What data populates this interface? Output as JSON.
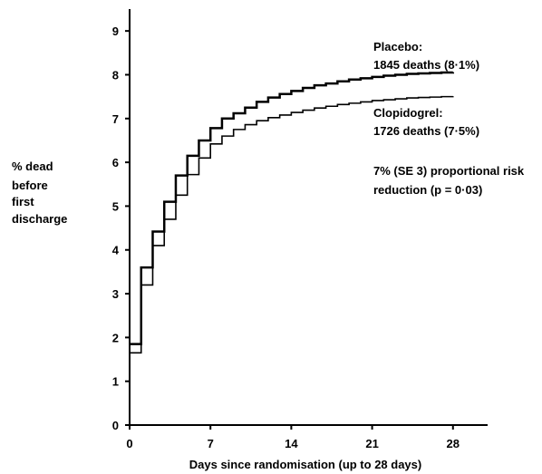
{
  "chart_data": {
    "type": "line",
    "title": "",
    "xlabel": "Days since randomisation (up to 28 days)",
    "ylabel_lines": [
      "% dead",
      "before",
      "first",
      "discharge"
    ],
    "xlim": [
      0,
      31
    ],
    "ylim": [
      0,
      9.5
    ],
    "x_ticks": [
      0,
      7,
      14,
      21,
      28
    ],
    "y_ticks": [
      0,
      1,
      2,
      3,
      4,
      5,
      6,
      7,
      8,
      9
    ],
    "grid": false,
    "step": true,
    "series": [
      {
        "name": "Placebo",
        "stroke_width": 2.5,
        "x": [
          0,
          1,
          2,
          3,
          4,
          5,
          6,
          7,
          8,
          9,
          10,
          11,
          12,
          13,
          14,
          15,
          16,
          17,
          18,
          19,
          20,
          21,
          22,
          23,
          24,
          25,
          26,
          27,
          28
        ],
        "values": [
          1.85,
          3.6,
          4.42,
          5.1,
          5.7,
          6.15,
          6.5,
          6.78,
          7.0,
          7.12,
          7.25,
          7.38,
          7.48,
          7.56,
          7.63,
          7.7,
          7.76,
          7.8,
          7.85,
          7.89,
          7.92,
          7.95,
          7.98,
          8.0,
          8.02,
          8.03,
          8.04,
          8.05,
          8.06
        ]
      },
      {
        "name": "Clopidogrel",
        "stroke_width": 1.6,
        "x": [
          0,
          1,
          2,
          3,
          4,
          5,
          6,
          7,
          8,
          9,
          10,
          11,
          12,
          13,
          14,
          15,
          16,
          17,
          18,
          19,
          20,
          21,
          22,
          23,
          24,
          25,
          26,
          27,
          28
        ],
        "values": [
          1.65,
          3.2,
          4.1,
          4.7,
          5.25,
          5.72,
          6.1,
          6.42,
          6.6,
          6.75,
          6.86,
          6.95,
          7.02,
          7.08,
          7.14,
          7.19,
          7.24,
          7.28,
          7.32,
          7.35,
          7.38,
          7.41,
          7.43,
          7.45,
          7.47,
          7.48,
          7.49,
          7.5,
          7.51
        ]
      }
    ],
    "annotations": {
      "placebo_name": "Placebo:",
      "placebo_deaths": "1845 deaths (8·1%)",
      "clopidogrel_name": "Clopidogrel:",
      "clopidogrel_deaths": "1726 deaths (7·5%)",
      "risk_line1": "7% (SE 3) proportional risk",
      "risk_line2": "reduction (p = 0·03)"
    }
  }
}
